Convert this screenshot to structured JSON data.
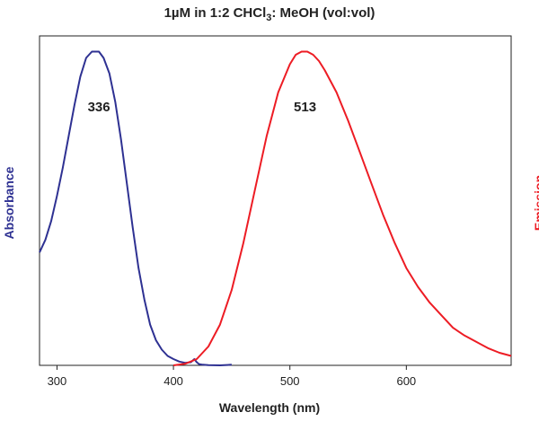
{
  "chart_data": {
    "type": "line",
    "title": {
      "before": "1µM in 1:2 CHCl",
      "subscript": "3",
      "after": ": MeOH (vol:vol)"
    },
    "xlabel": "Wavelength (nm)",
    "ylabel_left": "Absorbance",
    "ylabel_right": "Emission",
    "xlim": [
      285,
      690
    ],
    "ylim": [
      0,
      1.05
    ],
    "xticks": [
      300,
      400,
      500,
      600
    ],
    "series": [
      {
        "color": "#2e3192",
        "x": [
          285,
          290,
          295,
          300,
          305,
          310,
          315,
          320,
          325,
          330,
          335,
          336,
          340,
          345,
          350,
          355,
          360,
          365,
          370,
          375,
          380,
          385,
          390,
          395,
          400,
          405,
          410,
          415,
          418,
          420,
          422,
          425,
          430,
          440,
          450
        ],
        "y": [
          0.36,
          0.4,
          0.46,
          0.54,
          0.63,
          0.73,
          0.83,
          0.92,
          0.98,
          1.0,
          1.0,
          1.0,
          0.98,
          0.93,
          0.84,
          0.72,
          0.58,
          0.44,
          0.31,
          0.21,
          0.13,
          0.08,
          0.05,
          0.03,
          0.02,
          0.012,
          0.008,
          0.01,
          0.02,
          0.01,
          0.004,
          0.002,
          0.001,
          0.0,
          0.002
        ]
      },
      {
        "color": "#ed1c24",
        "x": [
          400,
          410,
          420,
          430,
          440,
          450,
          460,
          470,
          480,
          490,
          500,
          505,
          510,
          513,
          515,
          520,
          525,
          530,
          540,
          550,
          560,
          570,
          580,
          590,
          600,
          610,
          620,
          630,
          640,
          650,
          660,
          670,
          680,
          690
        ],
        "y": [
          0.0,
          0.005,
          0.02,
          0.06,
          0.13,
          0.24,
          0.39,
          0.56,
          0.73,
          0.87,
          0.96,
          0.99,
          1.0,
          1.0,
          1.0,
          0.99,
          0.97,
          0.94,
          0.87,
          0.78,
          0.68,
          0.58,
          0.48,
          0.39,
          0.31,
          0.25,
          0.2,
          0.16,
          0.12,
          0.095,
          0.075,
          0.055,
          0.04,
          0.03
        ]
      }
    ],
    "annotations": [
      {
        "text": "336",
        "x": 336,
        "y": 0.81
      },
      {
        "text": "513",
        "x": 513,
        "y": 0.81
      }
    ],
    "grid": false
  }
}
